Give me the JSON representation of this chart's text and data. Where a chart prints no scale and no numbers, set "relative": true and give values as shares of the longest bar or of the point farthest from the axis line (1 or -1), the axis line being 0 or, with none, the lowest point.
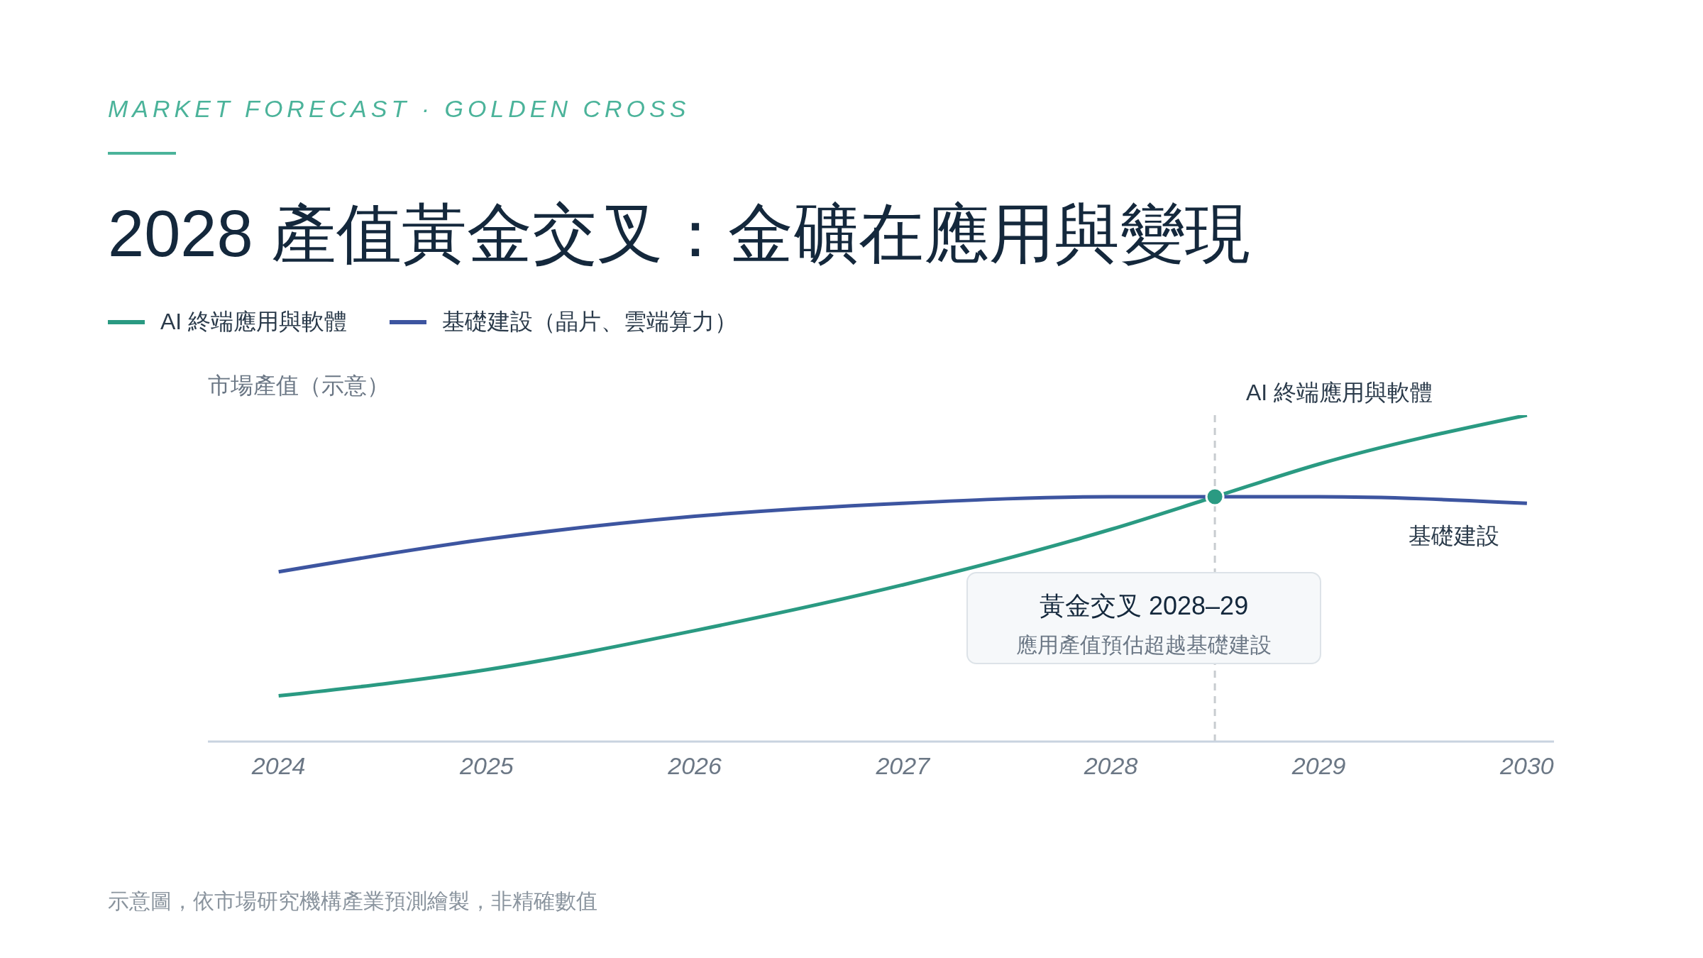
{
  "chart_data": {
    "type": "line",
    "title": "2028 產值黃金交叉：金礦在應用與變現",
    "subtitle": "MARKET FORECAST · GOLDEN CROSS",
    "ylabel": "市場產值（示意）",
    "relative": true,
    "legend": "top left",
    "line_style": "solid",
    "marker": "none",
    "xlim": [
      2023.66,
      2030.13
    ],
    "xticks": [
      2024,
      2025,
      2026,
      2027,
      2028,
      2029,
      2030
    ],
    "series": [
      {
        "name": "AI 終端應用與軟體",
        "color": "#2a9a82",
        "x": [
          2024,
          2025,
          2026,
          2027,
          2028,
          2028.5,
          2029,
          2030
        ],
        "values": [
          0.14,
          0.22,
          0.34,
          0.48,
          0.65,
          0.75,
          0.85,
          1
        ]
      },
      {
        "name": "基礎建設（晶片、雲端算力）",
        "color": "#3d55a0",
        "x": [
          2024,
          2025,
          2026,
          2027,
          2028,
          2028.5,
          2029,
          2030
        ],
        "values": [
          0.52,
          0.62,
          0.69,
          0.73,
          0.75,
          0.75,
          0.75,
          0.73
        ]
      },
      {
        "type": "scatter",
        "marker": "circle",
        "color": "#2a9a82",
        "x": [
          2028.5
        ],
        "values": [
          0.75
        ]
      }
    ],
    "ref_lines": [
      {
        "axis": "x",
        "value": 2028.5,
        "label": "黃金交叉 2028–29",
        "color": "#c8ccd0",
        "line_style": "dashed"
      }
    ],
    "annotations": [
      "AI 終端應用與軟體",
      {
        "text": "基礎建設",
        "x": 2029.65,
        "y": 0.73
      },
      "應用產值預估超越基礎建設",
      "示意圖，依市場研究機構產業預測繪製，非精確數值"
    ]
  }
}
